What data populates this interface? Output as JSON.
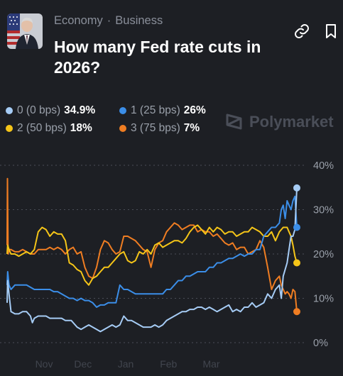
{
  "header": {
    "breadcrumb": [
      "Economy",
      "Business"
    ],
    "breadcrumb_separator": "·",
    "title": "How many Fed rate cuts in 2026?"
  },
  "watermark": "Polymarket",
  "legend": [
    {
      "label": "0 (0 bps)",
      "value": "34.9%",
      "color": "#a6ccf5"
    },
    {
      "label": "1 (25 bps)",
      "value": "26%",
      "color": "#3b8ee8"
    },
    {
      "label": "2 (50 bps)",
      "value": "18%",
      "color": "#f5c518"
    },
    {
      "label": "3 (75 bps)",
      "value": "7%",
      "color": "#ef7d22"
    }
  ],
  "chart_data": {
    "type": "line",
    "x_tick_labels": [
      "Nov",
      "Dec",
      "Jan",
      "Feb",
      "Mar"
    ],
    "y_tick_labels": [
      "0%",
      "10%",
      "20%",
      "30%",
      "40%"
    ],
    "ylim": [
      0,
      40
    ],
    "grid": true,
    "series": [
      {
        "name": "0 (0 bps)",
        "color": "#a6ccf5",
        "x": [
          0,
          0.3,
          1,
          2,
          4,
          6,
          8,
          10,
          12,
          13,
          14,
          16,
          18,
          20,
          22,
          25,
          28,
          30,
          33,
          36,
          38,
          40,
          42,
          44,
          46,
          48,
          50,
          52,
          54,
          56,
          58,
          60,
          62,
          64,
          66,
          68,
          70,
          72,
          74,
          76,
          78,
          80,
          82,
          84,
          86,
          88,
          90,
          92,
          94,
          96,
          98,
          100,
          102,
          104,
          106,
          108,
          110,
          112,
          114,
          116,
          118,
          120,
          122,
          124,
          126,
          128,
          130,
          132,
          134,
          136,
          138,
          140,
          141,
          142,
          144,
          145,
          146,
          147,
          148,
          149
        ],
        "values": [
          9,
          14,
          11,
          7,
          6.5,
          6.5,
          7,
          7,
          6,
          4.5,
          5.5,
          6,
          6,
          6,
          5.5,
          5.5,
          5.5,
          5,
          5,
          3.5,
          3,
          3.5,
          4,
          3.5,
          3,
          2.5,
          3,
          3.5,
          4,
          3.5,
          4,
          6,
          5,
          5,
          4.5,
          4,
          3.5,
          3.5,
          3.5,
          4,
          3.5,
          4,
          5,
          5.5,
          6,
          6.5,
          7,
          7,
          7.5,
          7.5,
          8,
          8,
          7.5,
          8,
          7.5,
          7,
          7.5,
          8,
          8.5,
          7,
          7.5,
          7,
          8,
          8,
          9,
          8,
          8.5,
          9,
          11,
          10,
          12,
          13,
          10,
          15,
          18,
          21,
          24,
          24,
          25.5,
          34.9
        ]
      },
      {
        "name": "1 (25 bps)",
        "color": "#3b8ee8",
        "x": [
          0,
          0.3,
          1,
          2,
          4,
          6,
          8,
          10,
          12,
          14,
          16,
          18,
          20,
          22,
          24,
          26,
          28,
          30,
          32,
          34,
          36,
          38,
          40,
          42,
          44,
          46,
          48,
          50,
          52,
          54,
          56,
          58,
          60,
          62,
          64,
          66,
          68,
          70,
          72,
          74,
          76,
          78,
          80,
          82,
          84,
          86,
          88,
          90,
          92,
          94,
          96,
          98,
          100,
          102,
          104,
          106,
          108,
          110,
          112,
          114,
          116,
          118,
          120,
          122,
          124,
          126,
          128,
          130,
          132,
          134,
          136,
          138,
          140,
          141,
          142,
          143,
          144,
          145,
          146,
          147,
          148,
          149
        ],
        "values": [
          13,
          16,
          13,
          12,
          13,
          13,
          13,
          13,
          12.5,
          12,
          12,
          12,
          12,
          12,
          11.5,
          11.5,
          11,
          10.5,
          10,
          10,
          9.5,
          10,
          9.5,
          9.5,
          9,
          8,
          8.5,
          8.5,
          9,
          9,
          9,
          13,
          12,
          12,
          11.5,
          11,
          11,
          11,
          11,
          11,
          11,
          11,
          11,
          12,
          12,
          13,
          14,
          14,
          15,
          15,
          15.5,
          16,
          16,
          16,
          17,
          17,
          18,
          18,
          18.5,
          19,
          19,
          19.5,
          20,
          19.5,
          20,
          20,
          21,
          21,
          24,
          25,
          26,
          26,
          27,
          30,
          31,
          28,
          32,
          31,
          30,
          32,
          33,
          26
        ]
      },
      {
        "name": "2 (50 bps)",
        "color": "#f5c518",
        "x": [
          0,
          0.3,
          1,
          2,
          4,
          6,
          8,
          10,
          12,
          14,
          16,
          18,
          20,
          22,
          24,
          26,
          28,
          30,
          32,
          34,
          36,
          38,
          40,
          42,
          44,
          46,
          48,
          50,
          52,
          54,
          56,
          58,
          60,
          62,
          64,
          66,
          68,
          70,
          72,
          74,
          76,
          78,
          80,
          82,
          84,
          86,
          88,
          90,
          92,
          94,
          96,
          98,
          100,
          102,
          104,
          106,
          108,
          110,
          112,
          114,
          116,
          118,
          120,
          122,
          124,
          126,
          128,
          130,
          132,
          134,
          136,
          138,
          140,
          142,
          144,
          145,
          146,
          147,
          148,
          149
        ],
        "values": [
          20,
          22,
          21,
          20,
          20,
          19.5,
          20,
          20.5,
          20,
          21,
          25,
          26,
          25.5,
          24,
          25,
          24.5,
          24.5,
          23,
          18,
          17.5,
          16.5,
          16,
          14,
          13,
          14.5,
          15,
          16,
          17,
          17,
          18,
          19,
          20,
          20.5,
          18.5,
          18,
          18.5,
          20.5,
          20,
          21,
          20,
          22,
          22.5,
          21.5,
          22,
          22.5,
          23,
          23,
          22.5,
          23.5,
          25,
          26,
          26.5,
          25.5,
          24.5,
          26,
          25,
          26,
          25.5,
          24.5,
          25,
          25,
          24,
          24.5,
          25,
          25,
          26,
          25.5,
          25,
          24,
          24,
          25,
          23,
          25,
          26,
          26,
          25,
          24,
          22,
          19.5,
          18
        ]
      },
      {
        "name": "3 (75 bps)",
        "color": "#ef7d22",
        "x": [
          0,
          0.2,
          0.5,
          1,
          2,
          4,
          6,
          8,
          10,
          12,
          14,
          16,
          18,
          20,
          22,
          24,
          26,
          28,
          30,
          32,
          34,
          36,
          38,
          40,
          42,
          44,
          46,
          48,
          50,
          52,
          54,
          56,
          58,
          60,
          62,
          64,
          66,
          68,
          70,
          72,
          74,
          76,
          78,
          80,
          82,
          84,
          86,
          88,
          90,
          92,
          94,
          96,
          98,
          100,
          102,
          104,
          106,
          108,
          110,
          112,
          114,
          116,
          118,
          120,
          122,
          124,
          126,
          128,
          130,
          132,
          134,
          136,
          138,
          140,
          141,
          142,
          143,
          144,
          145,
          146,
          147,
          148,
          149
        ],
        "values": [
          22,
          37,
          20,
          21,
          21,
          20.5,
          20.5,
          21,
          20.5,
          20,
          20,
          21,
          21,
          21,
          21.5,
          21,
          21.5,
          21,
          20,
          21,
          21.5,
          20,
          20.5,
          17,
          15,
          14.5,
          17,
          21,
          23,
          22.5,
          21,
          20,
          20.5,
          24,
          24,
          23.5,
          23,
          22,
          21,
          20.5,
          17,
          21,
          22.5,
          23,
          25,
          26,
          27,
          26.5,
          25.5,
          26,
          26.5,
          26.5,
          25,
          25.5,
          25,
          25,
          24,
          24.5,
          23.5,
          22.5,
          22,
          22.5,
          21,
          21.5,
          21.5,
          20,
          20.5,
          21,
          23,
          21.5,
          17,
          12,
          14,
          15,
          13,
          12,
          11,
          11.5,
          11,
          10,
          12,
          11.5,
          7
        ]
      }
    ]
  }
}
